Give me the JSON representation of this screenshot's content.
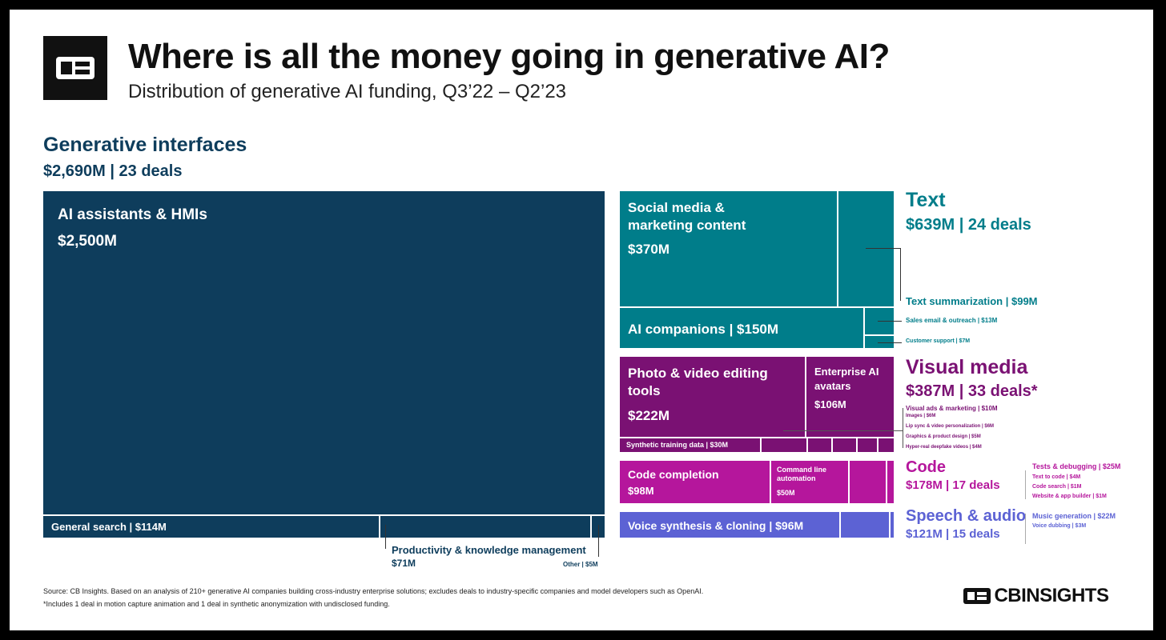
{
  "header": {
    "title": "Where is all the money going in generative AI?",
    "subtitle": "Distribution of generative AI funding, Q3’22 – Q2’23"
  },
  "categories": {
    "interfaces": {
      "name": "Generative interfaces",
      "stat": "$2,690M | 23 deals",
      "color": "#0e3d5c"
    },
    "text": {
      "name": "Text",
      "stat": "$639M | 24 deals",
      "color": "#007d8a"
    },
    "visual": {
      "name": "Visual media",
      "stat": "$387M | 33 deals*",
      "color": "#7a1173"
    },
    "code": {
      "name": "Code",
      "stat": "$178M | 17 deals",
      "color": "#b5169c"
    },
    "speech": {
      "name": "Speech & audio",
      "stat": "$121M | 15 deals",
      "color": "#5c62d4"
    }
  },
  "tiles": {
    "ai_assistants": {
      "label": "AI assistants & HMIs",
      "value": "$2,500M"
    },
    "general_search": {
      "label": "General search | $114M"
    },
    "productivity": {
      "label": "Productivity & knowledge management",
      "value": "$71M"
    },
    "other": {
      "label": "Other | $5M"
    },
    "social_media": {
      "label": "Social media & marketing content",
      "value": "$370M"
    },
    "ai_companions": {
      "label": "AI companions | $150M"
    },
    "text_summarization": {
      "label": "Text summarization | $99M"
    },
    "sales_email": {
      "label": "Sales email & outreach | $13M"
    },
    "customer_support": {
      "label": "Customer support | $7M"
    },
    "photo_video": {
      "label": "Photo & video editing tools",
      "value": "$222M"
    },
    "enterprise_avatars": {
      "label": "Enterprise AI avatars",
      "value": "$106M"
    },
    "synthetic_training": {
      "label": "Synthetic training data | $30M"
    },
    "visual_ads": {
      "label": "Visual ads & marketing | $10M"
    },
    "images": {
      "label": "Images | $6M"
    },
    "lip_sync": {
      "label": "Lip sync & video personalization | $6M"
    },
    "graphics_design": {
      "label": "Graphics & product design | $5M"
    },
    "hyper_real": {
      "label": "Hyper-real deepfake videos | $4M"
    },
    "code_completion": {
      "label": "Code completion",
      "value": "$98M"
    },
    "command_line": {
      "label": "Command line automation",
      "value": "$50M"
    },
    "tests_debugging": {
      "label": "Tests & debugging | $25M"
    },
    "text_to_code": {
      "label": "Text to code | $4M"
    },
    "code_search": {
      "label": "Code search | $1M"
    },
    "website_builder": {
      "label": "Website & app builder | $1M"
    },
    "voice_synthesis": {
      "label": "Voice synthesis & cloning | $96M"
    },
    "music_generation": {
      "label": "Music generation | $22M"
    },
    "voice_dubbing": {
      "label": "Voice dubbing | $3M"
    }
  },
  "footer": {
    "source": "Source: CB Insights. Based on an analysis of 210+ generative AI companies building cross-industry enterprise solutions; excludes deals to industry-specific companies and model developers such as OpenAI.",
    "note": "*Includes 1 deal in motion capture animation and 1 deal in synthetic anonymization with undisclosed funding.",
    "brand": "CBINSIGHTS"
  },
  "chart_data": {
    "type": "treemap",
    "title": "Where is all the money going in generative AI?",
    "subtitle": "Distribution of generative AI funding, Q3’22 – Q2’23",
    "unit": "$M",
    "groups": [
      {
        "name": "Generative interfaces",
        "total": 2690,
        "deals": 23,
        "children": [
          {
            "name": "AI assistants & HMIs",
            "value": 2500
          },
          {
            "name": "General search",
            "value": 114
          },
          {
            "name": "Productivity & knowledge management",
            "value": 71
          },
          {
            "name": "Other",
            "value": 5
          }
        ]
      },
      {
        "name": "Text",
        "total": 639,
        "deals": 24,
        "children": [
          {
            "name": "Social media & marketing content",
            "value": 370
          },
          {
            "name": "AI companions",
            "value": 150
          },
          {
            "name": "Text summarization",
            "value": 99
          },
          {
            "name": "Sales email & outreach",
            "value": 13
          },
          {
            "name": "Customer support",
            "value": 7
          }
        ]
      },
      {
        "name": "Visual media",
        "total": 387,
        "deals": 33,
        "children": [
          {
            "name": "Photo & video editing tools",
            "value": 222
          },
          {
            "name": "Enterprise AI avatars",
            "value": 106
          },
          {
            "name": "Synthetic training data",
            "value": 30
          },
          {
            "name": "Visual ads & marketing",
            "value": 10
          },
          {
            "name": "Images",
            "value": 6
          },
          {
            "name": "Lip sync & video personalization",
            "value": 6
          },
          {
            "name": "Graphics & product design",
            "value": 5
          },
          {
            "name": "Hyper-real deepfake videos",
            "value": 4
          }
        ]
      },
      {
        "name": "Code",
        "total": 178,
        "deals": 17,
        "children": [
          {
            "name": "Code completion",
            "value": 98
          },
          {
            "name": "Command line automation",
            "value": 50
          },
          {
            "name": "Tests & debugging",
            "value": 25
          },
          {
            "name": "Text to code",
            "value": 4
          },
          {
            "name": "Code search",
            "value": 1
          },
          {
            "name": "Website & app builder",
            "value": 1
          }
        ]
      },
      {
        "name": "Speech & audio",
        "total": 121,
        "deals": 15,
        "children": [
          {
            "name": "Voice synthesis & cloning",
            "value": 96
          },
          {
            "name": "Music generation",
            "value": 22
          },
          {
            "name": "Voice dubbing",
            "value": 3
          }
        ]
      }
    ]
  }
}
